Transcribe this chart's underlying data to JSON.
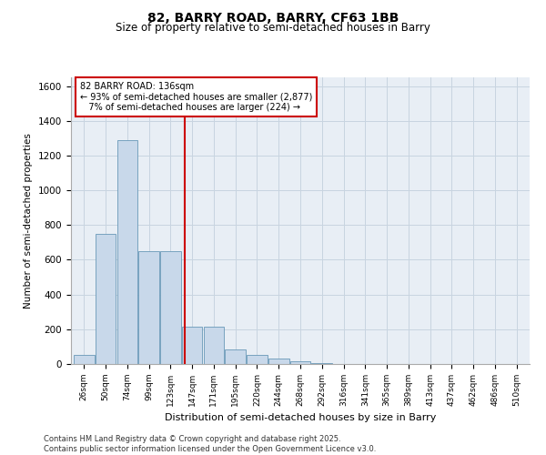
{
  "title1": "82, BARRY ROAD, BARRY, CF63 1BB",
  "title2": "Size of property relative to semi-detached houses in Barry",
  "xlabel": "Distribution of semi-detached houses by size in Barry",
  "ylabel": "Number of semi-detached properties",
  "categories": [
    "26sqm",
    "50sqm",
    "74sqm",
    "99sqm",
    "123sqm",
    "147sqm",
    "171sqm",
    "195sqm",
    "220sqm",
    "244sqm",
    "268sqm",
    "292sqm",
    "316sqm",
    "341sqm",
    "365sqm",
    "389sqm",
    "413sqm",
    "437sqm",
    "462sqm",
    "486sqm",
    "510sqm"
  ],
  "values": [
    55,
    750,
    1290,
    650,
    650,
    215,
    215,
    85,
    50,
    30,
    15,
    5,
    2,
    0,
    0,
    0,
    0,
    0,
    0,
    0,
    0
  ],
  "bar_color": "#c8d8ea",
  "bar_edge_color": "#6898b8",
  "property_line_x": 4.65,
  "annotation_line1": "82 BARRY ROAD: 136sqm",
  "annotation_line2": "← 93% of semi-detached houses are smaller (2,877)",
  "annotation_line3": "   7% of semi-detached houses are larger (224) →",
  "annotation_box_color": "#ffffff",
  "annotation_box_edge": "#cc0000",
  "vline_color": "#cc0000",
  "ylim": [
    0,
    1650
  ],
  "yticks": [
    0,
    200,
    400,
    600,
    800,
    1000,
    1200,
    1400,
    1600
  ],
  "grid_color": "#c8d4e0",
  "bg_color": "#e8eef5",
  "footer": "Contains HM Land Registry data © Crown copyright and database right 2025.\nContains public sector information licensed under the Open Government Licence v3.0."
}
